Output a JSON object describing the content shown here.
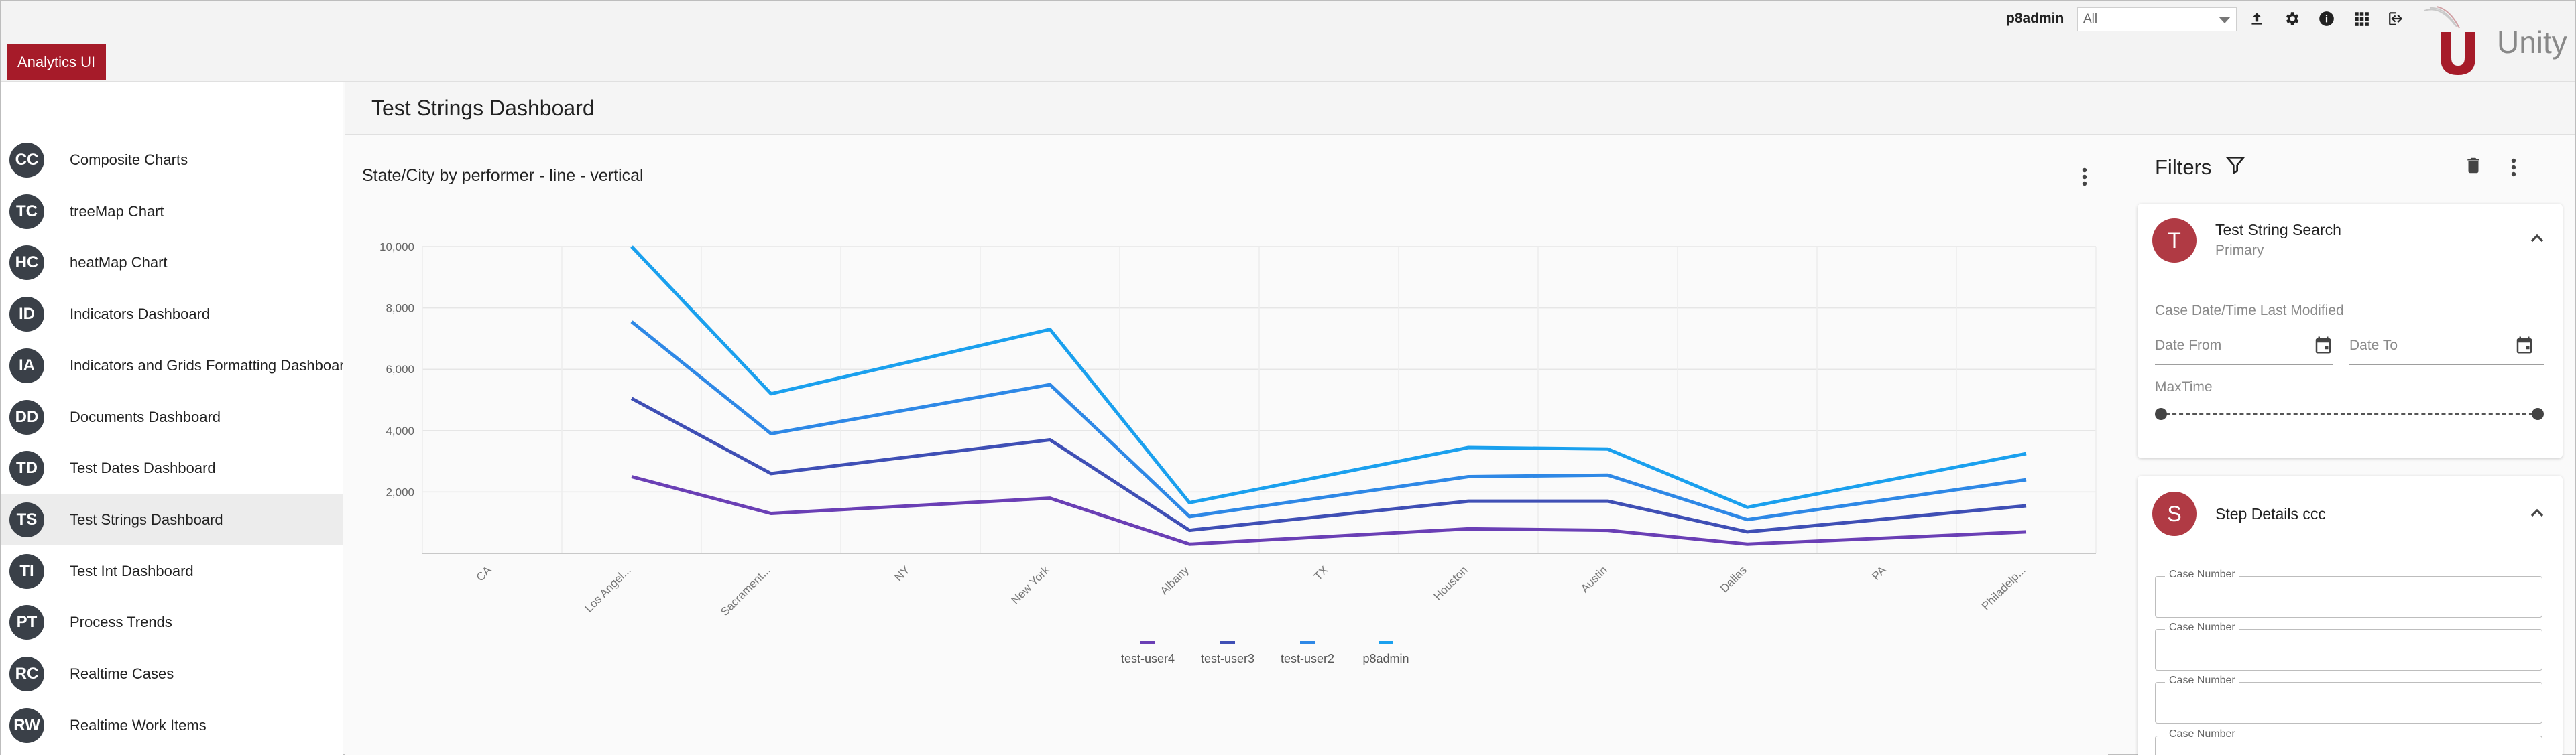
{
  "app": {
    "brand": "Analytics UI",
    "product_name": "Unity"
  },
  "topbar": {
    "username": "p8admin",
    "datasource_value": "All",
    "icons": [
      "upload-icon",
      "gear-icon",
      "info-icon",
      "apps-grid-icon",
      "logout-icon"
    ]
  },
  "sidebar": {
    "active_index": 7,
    "items": [
      {
        "badge": "CC",
        "label": "Composite Charts"
      },
      {
        "badge": "TC",
        "label": "treeMap Chart"
      },
      {
        "badge": "HC",
        "label": "heatMap Chart"
      },
      {
        "badge": "ID",
        "label": "Indicators Dashboard"
      },
      {
        "badge": "IA",
        "label": "Indicators and Grids Formatting Dashboard"
      },
      {
        "badge": "DD",
        "label": "Documents Dashboard"
      },
      {
        "badge": "TD",
        "label": "Test Dates Dashboard"
      },
      {
        "badge": "TS",
        "label": "Test Strings Dashboard"
      },
      {
        "badge": "TI",
        "label": "Test Int Dashboard"
      },
      {
        "badge": "PT",
        "label": "Process Trends"
      },
      {
        "badge": "RC",
        "label": "Realtime Cases"
      },
      {
        "badge": "RW",
        "label": "Realtime Work Items"
      }
    ]
  },
  "header": {
    "title": "Test Strings Dashboard"
  },
  "chart_data": {
    "type": "line",
    "title": "State/City by performer - line - vertical",
    "xlabel": "",
    "ylabel": "",
    "ylim": [
      0,
      10000
    ],
    "yticks": [
      2000,
      4000,
      6000,
      8000,
      10000
    ],
    "ytick_labels": [
      "2,000",
      "4,000",
      "6,000",
      "8,000",
      "10,000"
    ],
    "categories": [
      "CA",
      "Los Angel...",
      "Sacrament...",
      "NY",
      "New York",
      "Albany",
      "TX",
      "Houston",
      "Austin",
      "Dallas",
      "PA",
      "Philadelp..."
    ],
    "stacked": true,
    "legend_position": "bottom",
    "series": [
      {
        "name": "test-user4",
        "color": "#6a3fb5",
        "values": [
          null,
          2500,
          1300,
          null,
          1800,
          300,
          null,
          800,
          750,
          300,
          null,
          700
        ]
      },
      {
        "name": "test-user3",
        "color": "#3f4fb5",
        "values": [
          null,
          2550,
          1300,
          null,
          1900,
          450,
          null,
          900,
          950,
          400,
          null,
          850
        ]
      },
      {
        "name": "test-user2",
        "color": "#2e88e6",
        "values": [
          null,
          2500,
          1300,
          null,
          1800,
          450,
          null,
          800,
          850,
          400,
          null,
          850
        ]
      },
      {
        "name": "p8admin",
        "color": "#1aa0ee",
        "values": [
          null,
          2450,
          1300,
          null,
          1800,
          450,
          null,
          950,
          850,
          400,
          null,
          850
        ]
      }
    ]
  },
  "filters": {
    "title": "Filters",
    "card1": {
      "avatar": "T",
      "title": "Test String Search",
      "subtitle": "Primary",
      "section_label": "Case Date/Time Last Modified",
      "date_from_placeholder": "Date From",
      "date_to_placeholder": "Date To",
      "maxtime_label": "MaxTime"
    },
    "card2": {
      "avatar": "S",
      "title": "Step Details ccc",
      "fields": [
        "Case Number",
        "Case Number",
        "Case Number",
        "Case Number"
      ]
    }
  }
}
